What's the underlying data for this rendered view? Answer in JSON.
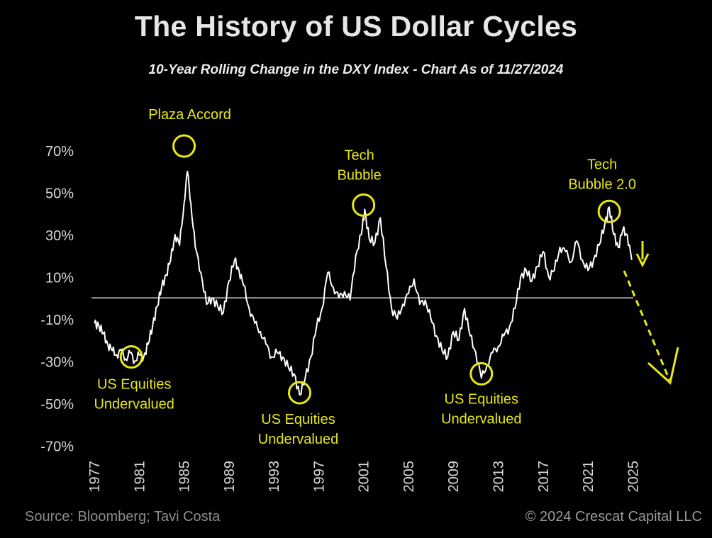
{
  "header": {
    "title": "The History of US Dollar Cycles",
    "subtitle": "10-Year Rolling Change in the DXY Index - Chart As of 11/27/2024"
  },
  "footer": {
    "source": "Source: Bloomberg; Tavi Costa",
    "credit": "© 2024 Crescat Capital LLC"
  },
  "colors": {
    "line": "#ffffff",
    "annotation": "#e8e817",
    "axis_text": "#d9d9d9",
    "background": "#000000"
  },
  "chart_data": {
    "type": "line",
    "title": "The History of US Dollar Cycles",
    "subtitle": "10-Year Rolling Change in the DXY Index - Chart As of 11/27/2024",
    "xlabel": "",
    "ylabel": "",
    "xlim": [
      1977,
      2031
    ],
    "ylim": [
      -70,
      70
    ],
    "y_ticks": [
      "70%",
      "50%",
      "30%",
      "10%",
      "-10%",
      "-30%",
      "-50%",
      "-70%"
    ],
    "y_tick_values": [
      70,
      50,
      30,
      10,
      -10,
      -30,
      -50,
      -70
    ],
    "x_ticks": [
      "1977",
      "1981",
      "1985",
      "1989",
      "1993",
      "1997",
      "2001",
      "2005",
      "2009",
      "2013",
      "2017",
      "2021",
      "2025"
    ],
    "x_tick_values": [
      1977,
      1981,
      1985,
      1989,
      1993,
      1997,
      2001,
      2005,
      2009,
      2013,
      2017,
      2021,
      2025
    ],
    "zero_line": true,
    "grid": false,
    "series": [
      {
        "values": [
          [
            1977.0,
            -12
          ],
          [
            1977.4,
            -13
          ],
          [
            1977.8,
            -17
          ],
          [
            1978.2,
            -22
          ],
          [
            1978.6,
            -25
          ],
          [
            1979.0,
            -27
          ],
          [
            1979.4,
            -25
          ],
          [
            1979.8,
            -29
          ],
          [
            1980.2,
            -26
          ],
          [
            1980.6,
            -30
          ],
          [
            1981.0,
            -27
          ],
          [
            1981.4,
            -28
          ],
          [
            1981.8,
            -22
          ],
          [
            1982.2,
            -13
          ],
          [
            1982.6,
            -4
          ],
          [
            1983.0,
            5
          ],
          [
            1983.4,
            11
          ],
          [
            1983.8,
            18
          ],
          [
            1984.2,
            30
          ],
          [
            1984.6,
            25
          ],
          [
            1985.0,
            45
          ],
          [
            1985.3,
            60
          ],
          [
            1985.6,
            45
          ],
          [
            1986.0,
            24
          ],
          [
            1986.5,
            12
          ],
          [
            1987.0,
            -3
          ],
          [
            1987.5,
            0
          ],
          [
            1988.0,
            -4
          ],
          [
            1988.5,
            -7
          ],
          [
            1989.0,
            8
          ],
          [
            1989.5,
            18
          ],
          [
            1989.9,
            13
          ],
          [
            1990.3,
            6
          ],
          [
            1990.8,
            -5
          ],
          [
            1991.3,
            -12
          ],
          [
            1991.8,
            -16
          ],
          [
            1992.3,
            -22
          ],
          [
            1992.8,
            -28
          ],
          [
            1993.3,
            -26
          ],
          [
            1993.8,
            -28
          ],
          [
            1994.3,
            -33
          ],
          [
            1994.8,
            -36
          ],
          [
            1995.3,
            -46
          ],
          [
            1995.8,
            -38
          ],
          [
            1996.3,
            -28
          ],
          [
            1996.8,
            -14
          ],
          [
            1997.3,
            -5
          ],
          [
            1997.8,
            12
          ],
          [
            1998.3,
            5
          ],
          [
            1998.8,
            0
          ],
          [
            1999.3,
            3
          ],
          [
            1999.8,
            -1
          ],
          [
            2000.3,
            20
          ],
          [
            2000.8,
            30
          ],
          [
            2001.1,
            42
          ],
          [
            2001.5,
            28
          ],
          [
            2002.0,
            26
          ],
          [
            2002.5,
            38
          ],
          [
            2003.0,
            15
          ],
          [
            2003.5,
            -5
          ],
          [
            2004.0,
            -10
          ],
          [
            2004.5,
            -3
          ],
          [
            2005.0,
            2
          ],
          [
            2005.5,
            9
          ],
          [
            2006.0,
            -3
          ],
          [
            2006.5,
            -1
          ],
          [
            2007.0,
            -10
          ],
          [
            2007.5,
            -18
          ],
          [
            2008.0,
            -25
          ],
          [
            2008.5,
            -28
          ],
          [
            2009.0,
            -16
          ],
          [
            2009.5,
            -20
          ],
          [
            2010.0,
            -5
          ],
          [
            2010.5,
            -18
          ],
          [
            2011.0,
            -26
          ],
          [
            2011.5,
            -38
          ],
          [
            2012.0,
            -32
          ],
          [
            2012.5,
            -26
          ],
          [
            2013.0,
            -23
          ],
          [
            2013.5,
            -18
          ],
          [
            2014.0,
            -14
          ],
          [
            2014.5,
            -5
          ],
          [
            2015.0,
            10
          ],
          [
            2015.5,
            13
          ],
          [
            2016.0,
            8
          ],
          [
            2016.5,
            15
          ],
          [
            2017.0,
            22
          ],
          [
            2017.5,
            10
          ],
          [
            2018.0,
            13
          ],
          [
            2018.5,
            24
          ],
          [
            2019.0,
            22
          ],
          [
            2019.5,
            17
          ],
          [
            2020.0,
            27
          ],
          [
            2020.5,
            18
          ],
          [
            2021.0,
            13
          ],
          [
            2021.5,
            18
          ],
          [
            2022.0,
            25
          ],
          [
            2022.5,
            35
          ],
          [
            2022.9,
            43
          ],
          [
            2023.3,
            30
          ],
          [
            2023.7,
            24
          ],
          [
            2024.1,
            32
          ],
          [
            2024.5,
            30
          ],
          [
            2024.9,
            18
          ]
        ]
      }
    ],
    "annotations": [
      {
        "label_lines": [
          "US Equities",
          "Undervalued"
        ],
        "marker_x": 1980.3,
        "marker_y": -28
      },
      {
        "label_lines": [
          "Plaza Accord"
        ],
        "marker_x": 1985.0,
        "marker_y": 72
      },
      {
        "label_lines": [
          "US Equities",
          "Undervalued"
        ],
        "marker_x": 1995.3,
        "marker_y": -45
      },
      {
        "label_lines": [
          "Tech",
          "Bubble"
        ],
        "marker_x": 2001.0,
        "marker_y": 44
      },
      {
        "label_lines": [
          "US Equities",
          "Undervalued"
        ],
        "marker_x": 2011.5,
        "marker_y": -36
      },
      {
        "label_lines": [
          "Tech",
          "Bubble 2.0"
        ],
        "marker_x": 2022.9,
        "marker_y": 41
      }
    ]
  }
}
